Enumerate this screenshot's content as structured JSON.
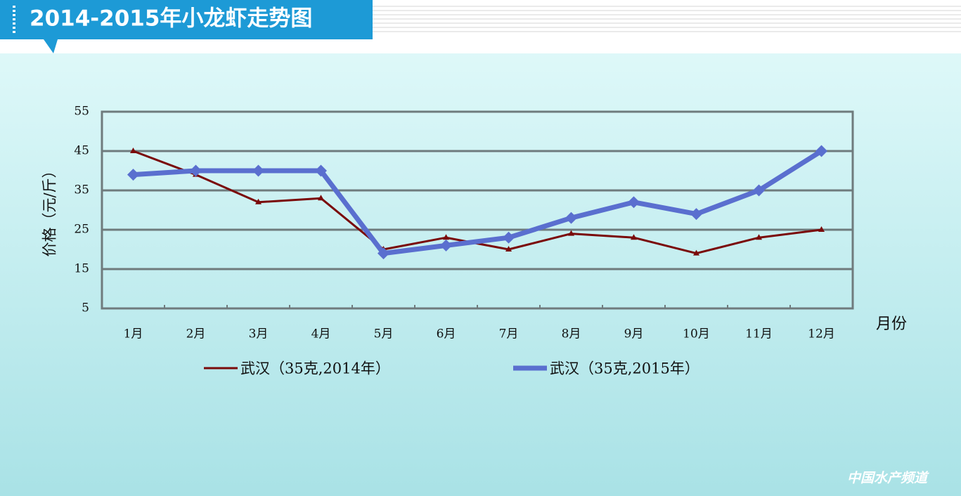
{
  "chart_data": {
    "type": "line",
    "title": "2014-2015年小龙虾走势图",
    "y_label": "价格（元/斤）",
    "x_label": "月份",
    "categories": [
      "1月",
      "2月",
      "3月",
      "4月",
      "5月",
      "6月",
      "7月",
      "8月",
      "9月",
      "10月",
      "11月",
      "12月"
    ],
    "series": [
      {
        "name": "武汉（35克,2014年）",
        "color": "#7a0a0a",
        "values": [
          45,
          39,
          32,
          33,
          20,
          23,
          20,
          24,
          23,
          19,
          23,
          25
        ]
      },
      {
        "name": "武汉（35克,2015年）",
        "color": "#5a6fcf",
        "values": [
          39,
          40,
          40,
          40,
          19,
          21,
          23,
          28,
          32,
          29,
          35,
          45
        ]
      }
    ],
    "ylim": [
      5,
      55
    ],
    "yticks": [
      5,
      15,
      25,
      35,
      45,
      55
    ],
    "grid": true,
    "watermark": "中国水产频道"
  }
}
